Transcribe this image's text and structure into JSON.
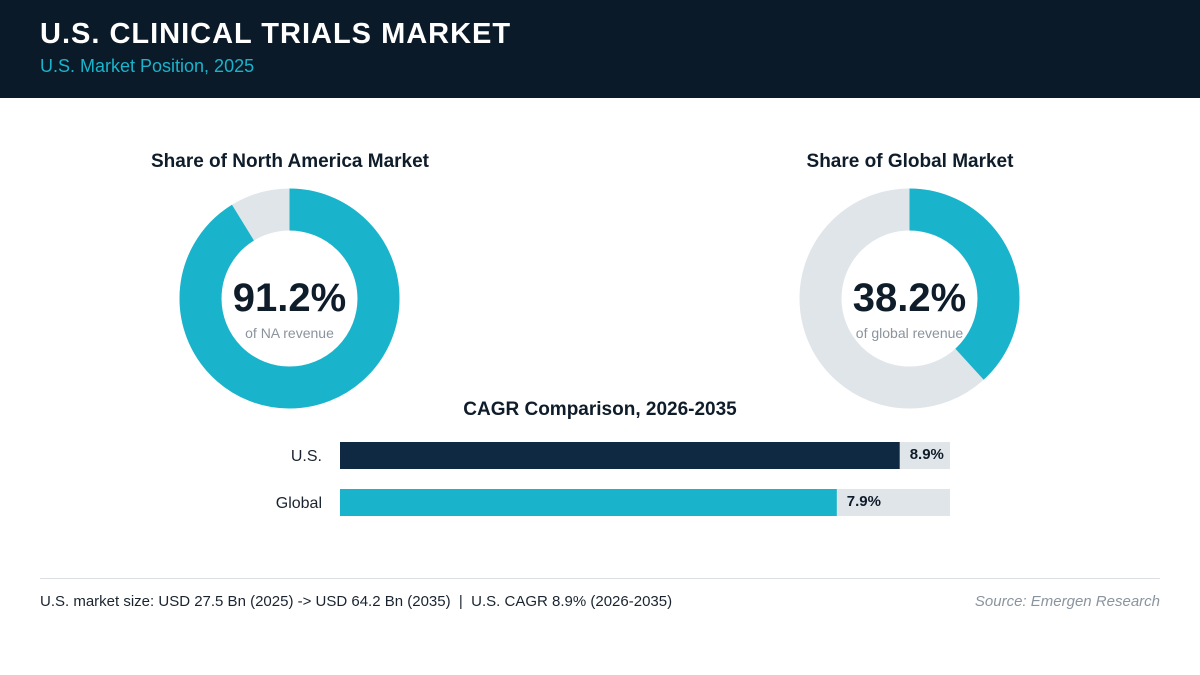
{
  "header": {
    "title": "U.S. CLINICAL TRIALS MARKET",
    "subtitle": "U.S. Market Position, 2025"
  },
  "colors": {
    "header_bg": "#0b1a28",
    "accent": "#19b4cb",
    "dark_bar": "#0f2942",
    "track": "#e0e5ea"
  },
  "chart_data": [
    {
      "type": "pie",
      "title": "Share of North America Market",
      "values": [
        91.2,
        8.8
      ],
      "display_value": "91.2%",
      "caption": "of NA revenue"
    },
    {
      "type": "pie",
      "title": "Share of Global Market",
      "values": [
        38.2,
        61.8
      ],
      "display_value": "38.2%",
      "caption": "of global revenue"
    },
    {
      "type": "bar",
      "title": "CAGR Comparison, 2026-2035",
      "categories": [
        "U.S.",
        "Global"
      ],
      "values": [
        8.9,
        7.9
      ],
      "value_labels": [
        "8.9%",
        "7.9%"
      ],
      "xlim": [
        0,
        9.7
      ]
    }
  ],
  "footer": {
    "summary": "U.S. market size: USD 27.5 Bn (2025) -> USD 64.2 Bn (2035)  |  U.S. CAGR 8.9% (2026-2035)",
    "source": "Source: Emergen Research"
  }
}
